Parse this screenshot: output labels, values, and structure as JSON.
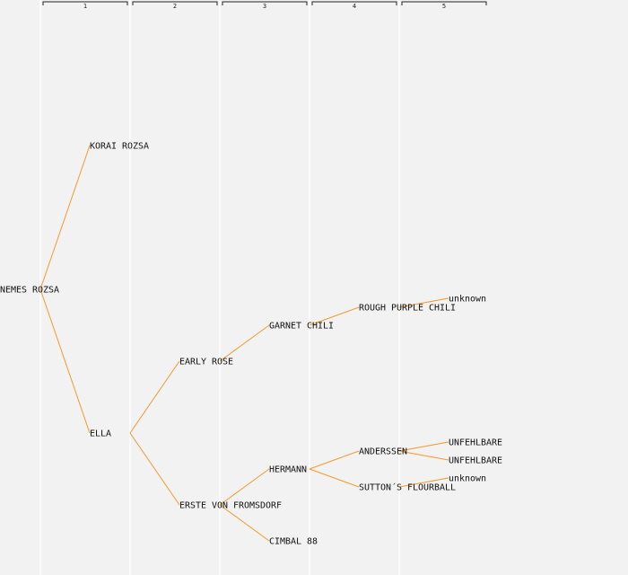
{
  "generations": [
    "1",
    "2",
    "3",
    "4",
    "5"
  ],
  "nodes": [
    {
      "id": "nemes-rozsa",
      "label": "NEMES ROZSA",
      "gen": 0
    },
    {
      "id": "korai-rozsa",
      "label": "KORAI ROZSA",
      "gen": 1
    },
    {
      "id": "ella",
      "label": "ELLA",
      "gen": 1
    },
    {
      "id": "early-rose",
      "label": "EARLY ROSE",
      "gen": 2
    },
    {
      "id": "erste-von-fromsdorf",
      "label": "ERSTE VON FROMSDORF",
      "gen": 2
    },
    {
      "id": "garnet-chili",
      "label": "GARNET CHILI",
      "gen": 3
    },
    {
      "id": "hermann",
      "label": "HERMANN",
      "gen": 3
    },
    {
      "id": "cimbal-88",
      "label": "CIMBAL 88",
      "gen": 3
    },
    {
      "id": "rough-purple-chili",
      "label": "ROUGH PURPLE CHILI",
      "gen": 4
    },
    {
      "id": "anderssen",
      "label": "ANDERSSEN",
      "gen": 4
    },
    {
      "id": "suttons-flourball",
      "label": "SUTTON´S FLOURBALL",
      "gen": 4
    },
    {
      "id": "unknown-1",
      "label": "unknown",
      "gen": 5
    },
    {
      "id": "unfehlbare-1",
      "label": "UNFEHLBARE",
      "gen": 5
    },
    {
      "id": "unfehlbare-2",
      "label": "UNFEHLBARE",
      "gen": 5
    },
    {
      "id": "unknown-2",
      "label": "unknown",
      "gen": 5
    }
  ],
  "edges": [
    [
      "nemes-rozsa",
      "korai-rozsa"
    ],
    [
      "nemes-rozsa",
      "ella"
    ],
    [
      "ella",
      "early-rose"
    ],
    [
      "ella",
      "erste-von-fromsdorf"
    ],
    [
      "early-rose",
      "garnet-chili"
    ],
    [
      "erste-von-fromsdorf",
      "hermann"
    ],
    [
      "erste-von-fromsdorf",
      "cimbal-88"
    ],
    [
      "garnet-chili",
      "rough-purple-chili"
    ],
    [
      "hermann",
      "anderssen"
    ],
    [
      "hermann",
      "suttons-flourball"
    ],
    [
      "rough-purple-chili",
      "unknown-1"
    ],
    [
      "anderssen",
      "unfehlbare-1"
    ],
    [
      "anderssen",
      "unfehlbare-2"
    ],
    [
      "suttons-flourball",
      "unknown-2"
    ]
  ],
  "colors": {
    "background": "#f2f2f2",
    "edge": "#f39a2a",
    "gridline": "#ffffff",
    "text": "#111111"
  }
}
